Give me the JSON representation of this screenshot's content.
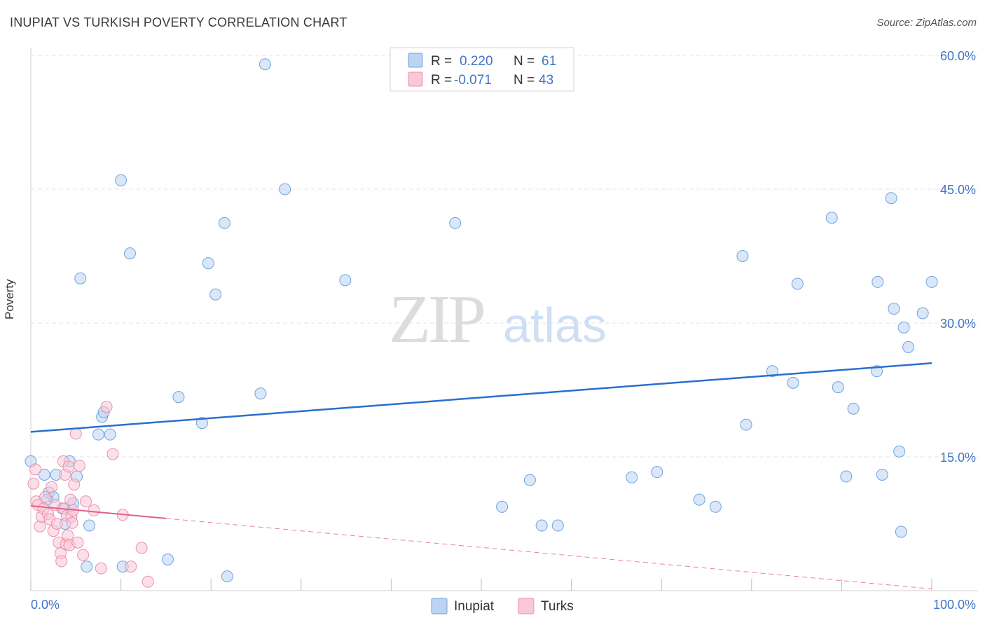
{
  "title": "INUPIAT VS TURKISH POVERTY CORRELATION CHART",
  "source": "Source: ZipAtlas.com",
  "watermark": {
    "zip": "ZIP",
    "atlas": "atlas"
  },
  "colors": {
    "blue": "#6fa3e0",
    "blue_fill": "#bcd3f2",
    "blue_line": "#2a6fcf",
    "pink": "#ec90ad",
    "pink_fill": "#f9c7d6",
    "pink_line": "#e0608a",
    "axis_text": "#3f74c8",
    "grid": "#e3e3e3"
  },
  "legend": {
    "rows": [
      {
        "r_label": "R =",
        "r_value": "0.220",
        "n_label": "N =",
        "n_value": "61"
      },
      {
        "r_label": "R =",
        "r_value": "-0.071",
        "n_label": "N =",
        "n_value": "43"
      }
    ]
  },
  "bottom_legend": [
    {
      "label": "Inupiat"
    },
    {
      "label": "Turks"
    }
  ],
  "chart_data": {
    "type": "scatter",
    "title": "INUPIAT VS TURKISH POVERTY CORRELATION CHART",
    "xlabel": "",
    "ylabel": "Poverty",
    "xlim": [
      0,
      100
    ],
    "ylim": [
      0,
      62
    ],
    "x_tick_labels": [
      "0.0%",
      "100.0%"
    ],
    "y_ticks": [
      15,
      30,
      45,
      60
    ],
    "y_tick_labels": [
      "15.0%",
      "30.0%",
      "45.0%",
      "60.0%"
    ],
    "series": [
      {
        "name": "Inupiat",
        "r": 0.22,
        "n": 61,
        "trend": {
          "x": [
            0,
            100
          ],
          "y": [
            17.8,
            25.5
          ],
          "style": "solid"
        },
        "points": [
          [
            0.0,
            14.5
          ],
          [
            1.5,
            13.0
          ],
          [
            2.0,
            11.0
          ],
          [
            2.5,
            10.5
          ],
          [
            1.8,
            10.2
          ],
          [
            2.8,
            13.0
          ],
          [
            3.5,
            9.2
          ],
          [
            3.8,
            7.5
          ],
          [
            4.3,
            14.5
          ],
          [
            4.7,
            9.8
          ],
          [
            5.1,
            12.8
          ],
          [
            5.5,
            35.0
          ],
          [
            6.5,
            7.3
          ],
          [
            6.2,
            2.7
          ],
          [
            7.5,
            17.5
          ],
          [
            7.9,
            19.5
          ],
          [
            8.1,
            20.0
          ],
          [
            8.8,
            17.5
          ],
          [
            10.0,
            46.0
          ],
          [
            10.2,
            2.7
          ],
          [
            11.0,
            37.8
          ],
          [
            15.2,
            3.5
          ],
          [
            16.4,
            21.7
          ],
          [
            19.0,
            18.8
          ],
          [
            19.7,
            36.7
          ],
          [
            20.5,
            33.2
          ],
          [
            21.5,
            41.2
          ],
          [
            21.8,
            1.6
          ],
          [
            25.5,
            22.1
          ],
          [
            26.0,
            59.0
          ],
          [
            28.2,
            45.0
          ],
          [
            34.9,
            34.8
          ],
          [
            47.1,
            41.2
          ],
          [
            52.3,
            9.4
          ],
          [
            55.4,
            12.4
          ],
          [
            56.7,
            7.3
          ],
          [
            58.5,
            7.3
          ],
          [
            66.7,
            12.7
          ],
          [
            69.5,
            13.3
          ],
          [
            74.2,
            10.2
          ],
          [
            76.0,
            9.4
          ],
          [
            79.0,
            37.5
          ],
          [
            79.4,
            18.6
          ],
          [
            82.3,
            24.6
          ],
          [
            85.1,
            34.4
          ],
          [
            84.6,
            23.3
          ],
          [
            88.9,
            41.8
          ],
          [
            89.6,
            22.8
          ],
          [
            90.5,
            12.8
          ],
          [
            91.3,
            20.4
          ],
          [
            93.9,
            24.6
          ],
          [
            94.0,
            34.6
          ],
          [
            94.5,
            13.0
          ],
          [
            95.5,
            44.0
          ],
          [
            95.8,
            31.6
          ],
          [
            96.4,
            15.6
          ],
          [
            96.6,
            6.6
          ],
          [
            96.9,
            29.5
          ],
          [
            97.4,
            27.3
          ],
          [
            99.0,
            31.1
          ],
          [
            100.0,
            34.6
          ]
        ]
      },
      {
        "name": "Turks",
        "r": -0.071,
        "n": 43,
        "trend": {
          "x": [
            0,
            15
          ],
          "y": [
            9.5,
            8.1
          ],
          "style": "solid"
        },
        "trend_extended": {
          "x": [
            15,
            100
          ],
          "y": [
            8.1,
            0.2
          ],
          "style": "dashed"
        },
        "points": [
          [
            0.3,
            12.0
          ],
          [
            0.5,
            13.6
          ],
          [
            0.6,
            10.0
          ],
          [
            0.8,
            9.6
          ],
          [
            1.0,
            7.2
          ],
          [
            1.2,
            8.3
          ],
          [
            1.4,
            9.2
          ],
          [
            1.6,
            10.5
          ],
          [
            1.9,
            8.6
          ],
          [
            2.1,
            8.0
          ],
          [
            2.3,
            11.6
          ],
          [
            2.5,
            6.7
          ],
          [
            2.7,
            9.6
          ],
          [
            2.9,
            7.5
          ],
          [
            3.1,
            5.4
          ],
          [
            3.3,
            4.2
          ],
          [
            3.4,
            3.3
          ],
          [
            3.6,
            14.5
          ],
          [
            3.7,
            9.2
          ],
          [
            3.8,
            13.0
          ],
          [
            3.9,
            5.2
          ],
          [
            4.0,
            8.4
          ],
          [
            4.1,
            6.2
          ],
          [
            4.2,
            13.9
          ],
          [
            4.3,
            5.1
          ],
          [
            4.4,
            10.2
          ],
          [
            4.5,
            8.3
          ],
          [
            4.6,
            7.6
          ],
          [
            4.7,
            9.0
          ],
          [
            4.8,
            11.9
          ],
          [
            5.0,
            17.6
          ],
          [
            5.2,
            5.4
          ],
          [
            5.4,
            14.0
          ],
          [
            5.8,
            4.0
          ],
          [
            6.1,
            10.0
          ],
          [
            7.0,
            9.0
          ],
          [
            7.8,
            2.5
          ],
          [
            8.4,
            20.6
          ],
          [
            9.1,
            15.3
          ],
          [
            10.2,
            8.5
          ],
          [
            11.1,
            2.7
          ],
          [
            12.3,
            4.8
          ],
          [
            13.0,
            1.0
          ]
        ]
      }
    ]
  }
}
